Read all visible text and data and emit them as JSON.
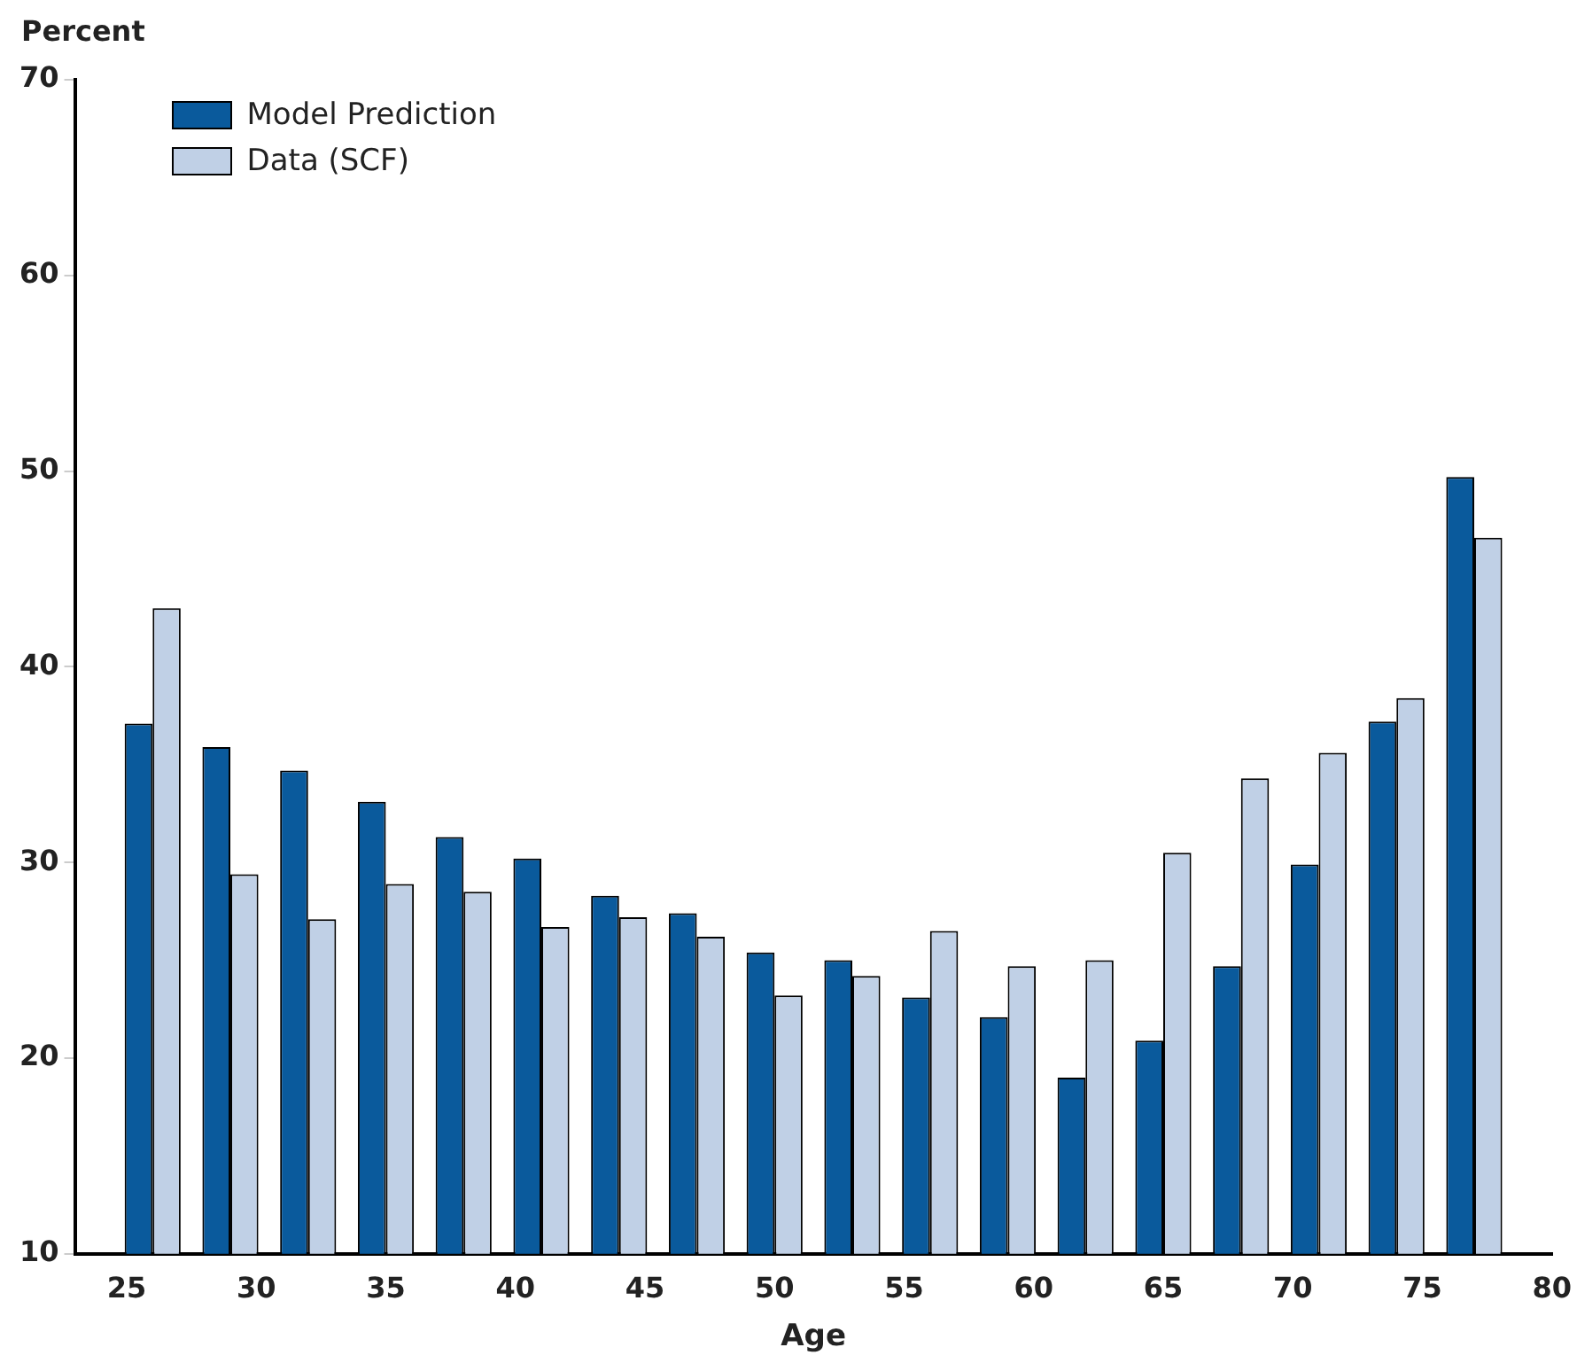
{
  "chart_data": {
    "type": "bar",
    "xlabel": "Age",
    "ylabel": "Percent",
    "x": [
      26,
      29,
      32,
      35,
      38,
      41,
      44,
      47,
      50,
      53,
      56,
      59,
      62,
      65,
      68,
      71,
      74,
      77
    ],
    "series": [
      {
        "name": "Model Prediction",
        "color": "#0a5a9c",
        "values": [
          37.1,
          35.9,
          34.7,
          33.1,
          31.3,
          30.2,
          28.3,
          27.4,
          25.4,
          25.0,
          23.1,
          22.1,
          19.0,
          20.9,
          24.7,
          29.9,
          37.2,
          49.7
        ]
      },
      {
        "name": "Data (SCF)",
        "color": "#c0d0e6",
        "values": [
          43.0,
          29.4,
          27.1,
          28.9,
          28.5,
          26.7,
          27.2,
          26.2,
          23.2,
          24.2,
          26.5,
          24.7,
          25.0,
          30.5,
          34.3,
          35.6,
          38.4,
          46.6
        ]
      }
    ],
    "xlim": [
      23,
      80
    ],
    "xticks": [
      25,
      30,
      35,
      40,
      45,
      50,
      55,
      60,
      65,
      70,
      75,
      80
    ],
    "ylim": [
      10,
      70
    ],
    "yticks": [
      10,
      20,
      30,
      40,
      50,
      60,
      70
    ],
    "grid": false,
    "legend": "top left"
  }
}
